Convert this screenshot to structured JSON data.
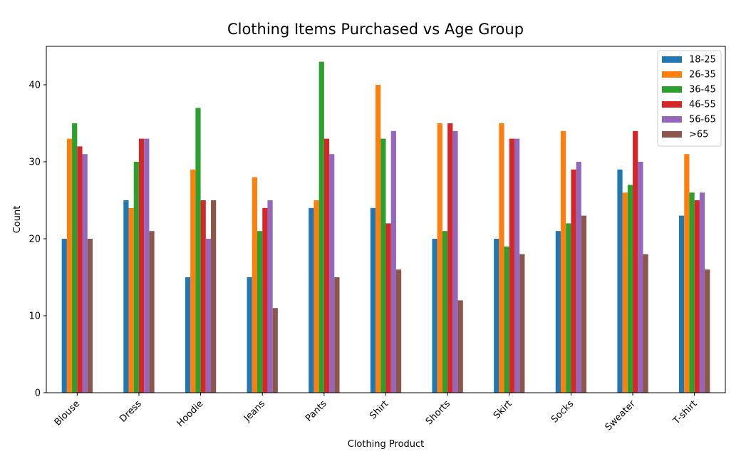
{
  "chart_data": {
    "type": "bar",
    "title": "Clothing Items Purchased vs Age Group",
    "xlabel": "Clothing Product",
    "ylabel": "Count",
    "ylim": [
      0,
      45
    ],
    "yticks": [
      0,
      10,
      20,
      30,
      40
    ],
    "grid": false,
    "legend_position": "top-right",
    "categories": [
      "Blouse",
      "Dress",
      "Hoodie",
      "Jeans",
      "Pants",
      "Shirt",
      "Shorts",
      "Skirt",
      "Socks",
      "Sweater",
      "T-shirt"
    ],
    "series": [
      {
        "name": "18-25",
        "color": "#1f77b4",
        "values": [
          20,
          25,
          15,
          15,
          24,
          24,
          20,
          20,
          21,
          29,
          23
        ]
      },
      {
        "name": "26-35",
        "color": "#ff7f0e",
        "values": [
          33,
          24,
          29,
          28,
          25,
          40,
          35,
          35,
          34,
          26,
          31
        ]
      },
      {
        "name": "36-45",
        "color": "#2ca02c",
        "values": [
          35,
          30,
          37,
          21,
          43,
          33,
          21,
          19,
          22,
          27,
          26
        ]
      },
      {
        "name": "46-55",
        "color": "#d62728",
        "values": [
          32,
          33,
          25,
          24,
          33,
          22,
          35,
          33,
          29,
          34,
          25
        ]
      },
      {
        "name": "56-65",
        "color": "#9467bd",
        "values": [
          31,
          33,
          20,
          25,
          31,
          34,
          34,
          33,
          30,
          30,
          26
        ]
      },
      {
        "name": ">65",
        "color": "#8c564b",
        "values": [
          20,
          21,
          25,
          11,
          15,
          16,
          12,
          18,
          23,
          18,
          16
        ]
      }
    ]
  }
}
